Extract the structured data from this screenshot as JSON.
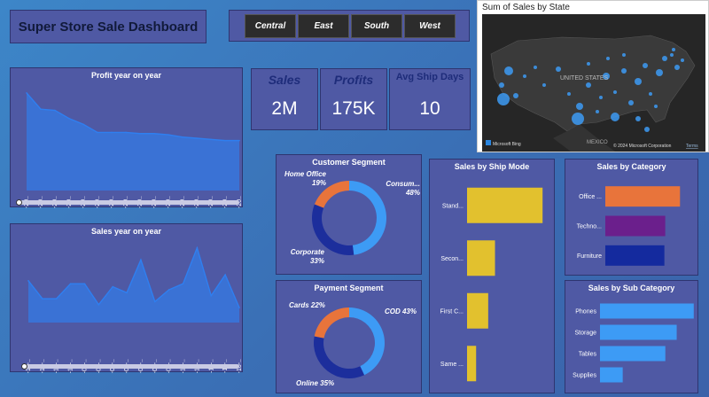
{
  "header": {
    "title": "Super Store Sale Dashboard"
  },
  "regions": [
    "Central",
    "East",
    "South",
    "West"
  ],
  "kpis": [
    {
      "label": "Sales",
      "value": "2M"
    },
    {
      "label": "Profits",
      "value": "175K"
    },
    {
      "label": "Avg Ship Days",
      "value": "10"
    }
  ],
  "map": {
    "title": "Sum of Sales by State",
    "country_label": "UNITED STATES",
    "mexico_label": "MEXICO",
    "bing_label": "Microsoft Bing",
    "copyright": "© 2024 Microsoft Corporation",
    "terms": "Terms"
  },
  "colors": {
    "bar_yellow": "#e2c12e",
    "orange": "#e8743b",
    "purple": "#6b1f8c",
    "navy": "#142a9e",
    "light_blue": "#3d9bf5",
    "area_blue": "#2f7ff0",
    "donut_navy": "#1c2e9c"
  },
  "chart_data": [
    {
      "id": "profit-yoy",
      "type": "area",
      "title": "Profit year on year",
      "x": [
        "02-10-20..",
        "23-09-20..",
        "17-12-20..",
        "17-12-20..",
        "02-02-20..",
        "04-10-20..",
        "16-01-20..",
        "13-10-20..",
        "18-08-20..",
        "08-04-20..",
        "10-02-20..",
        "20-10-20..",
        "15-09-20..",
        "18-08-20..",
        "01-03-20..",
        "30-05-20.."
      ],
      "values": [
        8400,
        7000,
        6900,
        6200,
        5700,
        5000,
        5000,
        5000,
        4900,
        4900,
        4800,
        4600,
        4500,
        4400,
        4300,
        4300
      ],
      "ylim": [
        0,
        9000
      ]
    },
    {
      "id": "sales-yoy",
      "type": "area",
      "title": "Sales year on year",
      "x": [
        "31-12-..",
        "31-12-..",
        "31-10-..",
        "31-10-..",
        "31-08-..",
        "31-08-..",
        "31-07-..",
        "31-05-..",
        "31-03-..",
        "31-03-..",
        "31-01-..",
        "30-12-..",
        "30-12-..",
        "30-11-..",
        "30-11-..",
        "30-10-.."
      ],
      "values": [
        14000,
        8000,
        8000,
        13000,
        13000,
        6000,
        12000,
        10000,
        21000,
        7000,
        11000,
        13000,
        25000,
        9000,
        16000,
        5000
      ],
      "ylim": [
        0,
        27000
      ]
    },
    {
      "id": "customer-segment",
      "type": "pie",
      "title": "Customer Segment",
      "labels": [
        "Consum...",
        "Corporate",
        "Home Office"
      ],
      "values": [
        48,
        33,
        19
      ],
      "data_labels": [
        "48%",
        "33%",
        "19%"
      ]
    },
    {
      "id": "payment-segment",
      "type": "pie",
      "title": "Payment Segment",
      "labels": [
        "COD",
        "Online",
        "Cards"
      ],
      "values": [
        43,
        35,
        22
      ],
      "data_labels": [
        "43%",
        "35%",
        "22%"
      ]
    },
    {
      "id": "ship-mode",
      "type": "bar",
      "title": "Sales by Ship Mode",
      "categories": [
        "Stand...",
        "Secon...",
        "First C...",
        "Same ..."
      ],
      "values": [
        1000,
        370,
        280,
        120
      ],
      "xlim": [
        0,
        1150
      ]
    },
    {
      "id": "category",
      "type": "bar",
      "title": "Sales by Category",
      "categories": [
        "Office ...",
        "Techno...",
        "Furniture"
      ],
      "values": [
        860,
        690,
        680
      ],
      "xlim": [
        0,
        1000
      ]
    },
    {
      "id": "sub-category",
      "type": "bar",
      "title": "Sales by Sub Category",
      "categories": [
        "Phones",
        "Storage",
        "Tables",
        "Supplies"
      ],
      "values": [
        330,
        270,
        230,
        80
      ],
      "xlim": [
        0,
        340
      ]
    }
  ]
}
